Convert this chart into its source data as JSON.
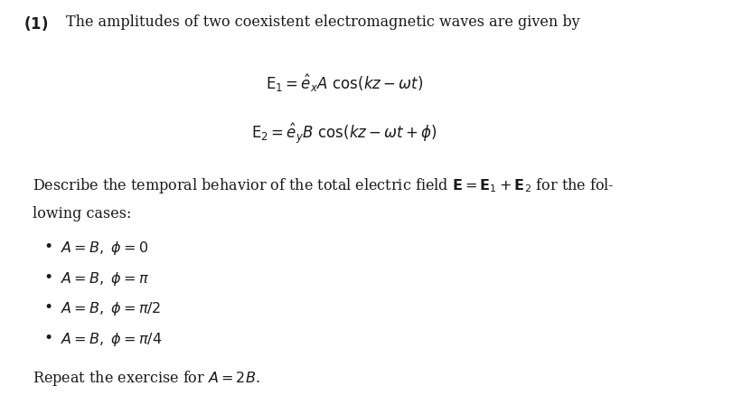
{
  "background_color": "#ffffff",
  "text_color": "#1a1a1a",
  "fig_width": 8.11,
  "fig_height": 4.48,
  "dpi": 100,
  "fs": 11.5
}
